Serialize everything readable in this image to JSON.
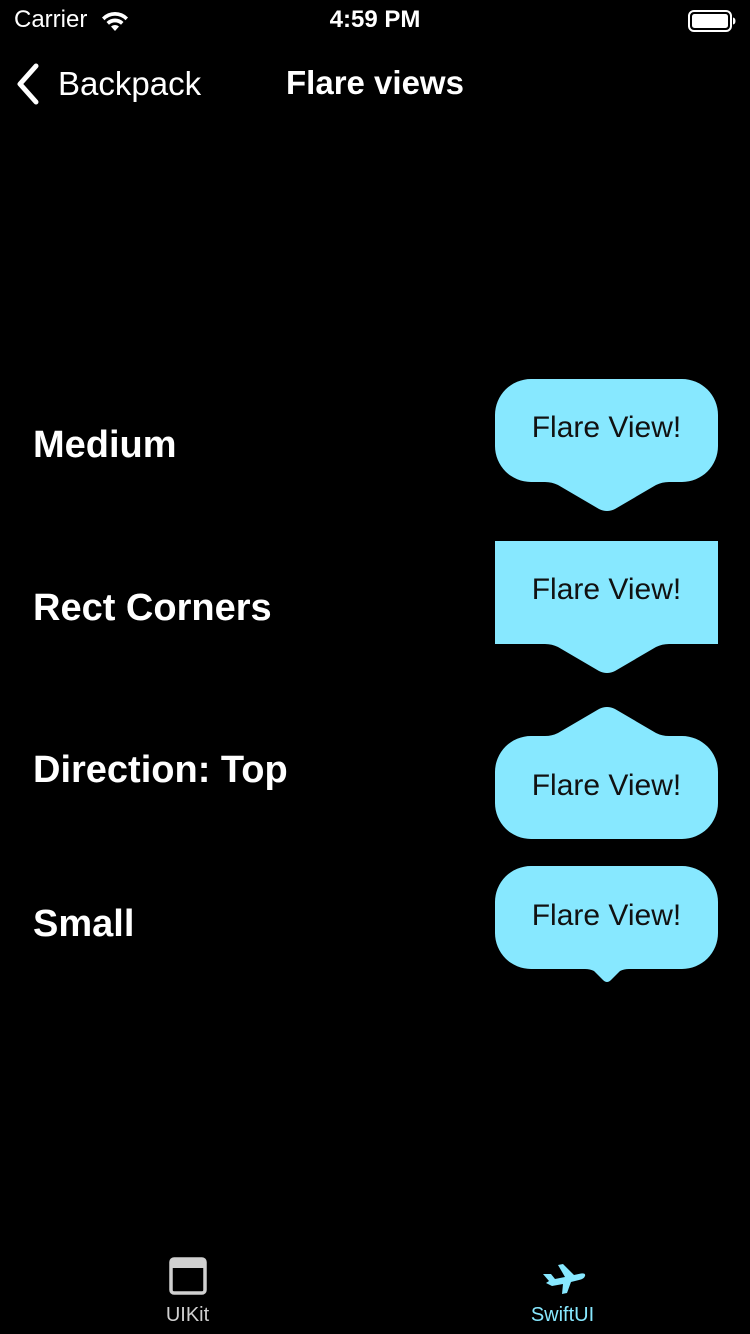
{
  "status_bar": {
    "carrier": "Carrier",
    "time": "4:59 PM",
    "wifi_icon": "wifi-icon",
    "battery_icon": "battery-icon"
  },
  "nav": {
    "back_label": "Backpack",
    "title": "Flare views",
    "back_icon": "chevron-left-icon"
  },
  "rows": [
    {
      "label": "Medium",
      "flare_text": "Flare View!",
      "corners": "rounded",
      "pointer": "bottom",
      "pointer_size": "medium"
    },
    {
      "label": "Rect Corners",
      "flare_text": "Flare View!",
      "corners": "square",
      "pointer": "bottom",
      "pointer_size": "medium"
    },
    {
      "label": "Direction: Top",
      "flare_text": "Flare View!",
      "corners": "rounded",
      "pointer": "top",
      "pointer_size": "medium"
    },
    {
      "label": "Small",
      "flare_text": "Flare View!",
      "corners": "rounded",
      "pointer": "bottom",
      "pointer_size": "small"
    }
  ],
  "tab_bar": {
    "tabs": [
      {
        "label": "UIKit",
        "icon": "window-icon",
        "selected": false
      },
      {
        "label": "SwiftUI",
        "icon": "airplane-icon",
        "selected": true
      }
    ]
  },
  "colors": {
    "background": "#000000",
    "flare": "#87E8FF",
    "flare_text": "#111111",
    "tab_selected": "#87E8FF",
    "tab_unselected": "#D0D0D0"
  }
}
